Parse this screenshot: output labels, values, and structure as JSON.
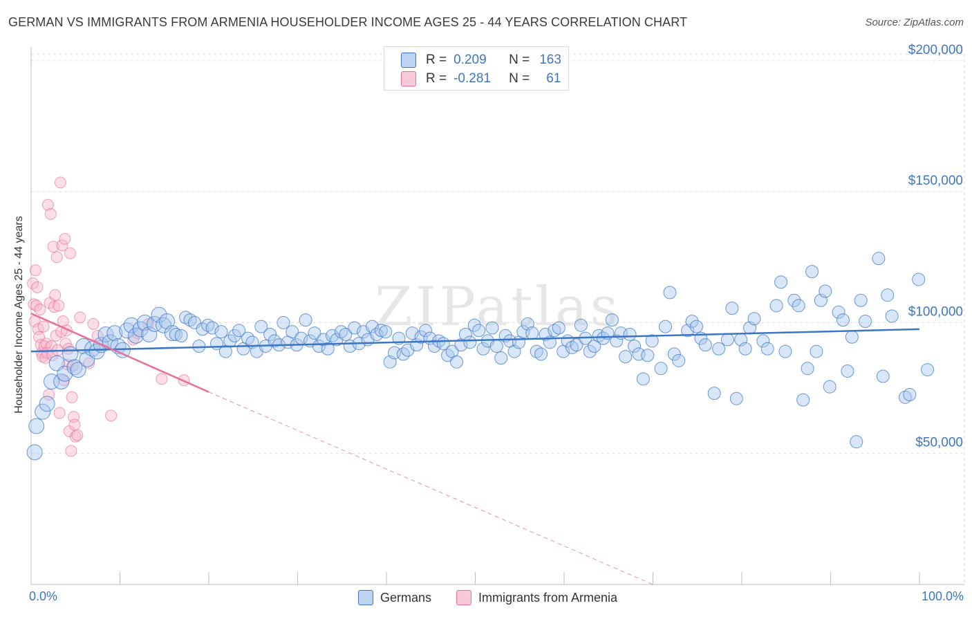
{
  "title": "GERMAN VS IMMIGRANTS FROM ARMENIA HOUSEHOLDER INCOME AGES 25 - 44 YEARS CORRELATION CHART",
  "source": "Source: ZipAtlas.com",
  "watermark": "ZIPatlas",
  "colors": {
    "blue": "#3b76c4",
    "blue_fill": "#a9c8ee",
    "pink": "#e76f9a",
    "pink_fill": "#f7b6cb",
    "grid": "#d9d9d9"
  },
  "legend": {
    "row1": {
      "r_label": "R =",
      "r_value": "0.209",
      "n_label": "N =",
      "n_value": "163"
    },
    "row2": {
      "r_label": "R =",
      "r_value": "-0.281",
      "n_label": "N =",
      "n_value": "61"
    }
  },
  "chart_data": {
    "type": "scatter",
    "title": "GERMAN VS IMMIGRANTS FROM ARMENIA HOUSEHOLDER INCOME AGES 25 - 44 YEARS CORRELATION CHART",
    "xlabel": "",
    "ylabel": "Householder Income Ages 25 - 44 years",
    "xlim": [
      0,
      100
    ],
    "ylim": [
      0,
      210000
    ],
    "x_tick_labels": [
      "0.0%",
      "100.0%"
    ],
    "y_ticks": [
      50000,
      100000,
      150000,
      200000
    ],
    "y_tick_labels": [
      "$50,000",
      "$100,000",
      "$150,000",
      "$200,000"
    ],
    "grid": true,
    "series": [
      {
        "name": "Germans",
        "color": "#3b76c4",
        "trend": {
          "x": [
            0,
            100
          ],
          "y": [
            89000,
            97500
          ],
          "dashed_beyond": null
        },
        "points": [
          [
            0.4,
            50500
          ],
          [
            0.6,
            60500
          ],
          [
            1.3,
            66000
          ],
          [
            1.8,
            69000
          ],
          [
            2.3,
            77500
          ],
          [
            2.9,
            84500
          ],
          [
            3.4,
            77500
          ],
          [
            3.8,
            80500
          ],
          [
            4.4,
            88000
          ],
          [
            4.9,
            83000
          ],
          [
            5.3,
            82000
          ],
          [
            5.9,
            91000
          ],
          [
            6.3,
            86000
          ],
          [
            6.9,
            90000
          ],
          [
            7.4,
            89000
          ],
          [
            7.9,
            91500
          ],
          [
            8.4,
            95500
          ],
          [
            8.9,
            92500
          ],
          [
            9.4,
            96000
          ],
          [
            9.8,
            91000
          ],
          [
            10.3,
            89500
          ],
          [
            10.8,
            97000
          ],
          [
            11.3,
            99000
          ],
          [
            11.8,
            95000
          ],
          [
            12.3,
            97500
          ],
          [
            12.8,
            100000
          ],
          [
            13.3,
            95500
          ],
          [
            13.9,
            99500
          ],
          [
            14.4,
            103000
          ],
          [
            14.9,
            99000
          ],
          [
            15.3,
            100500
          ],
          [
            15.9,
            96000
          ],
          [
            16.3,
            95500
          ],
          [
            16.9,
            95000
          ],
          [
            17.4,
            102000
          ],
          [
            17.9,
            101000
          ],
          [
            18.4,
            100000
          ],
          [
            18.9,
            91000
          ],
          [
            19.3,
            97500
          ],
          [
            19.9,
            99000
          ],
          [
            20.4,
            98000
          ],
          [
            20.9,
            92000
          ],
          [
            21.4,
            96500
          ],
          [
            21.9,
            89000
          ],
          [
            22.4,
            93000
          ],
          [
            22.9,
            95000
          ],
          [
            23.4,
            97000
          ],
          [
            23.9,
            90000
          ],
          [
            24.4,
            94000
          ],
          [
            24.9,
            92500
          ],
          [
            25.4,
            89000
          ],
          [
            25.9,
            98500
          ],
          [
            26.4,
            91000
          ],
          [
            26.9,
            95500
          ],
          [
            27.4,
            93000
          ],
          [
            27.9,
            91500
          ],
          [
            28.4,
            100000
          ],
          [
            28.9,
            92500
          ],
          [
            29.4,
            96500
          ],
          [
            29.9,
            91500
          ],
          [
            30.4,
            94000
          ],
          [
            30.9,
            101000
          ],
          [
            31.4,
            93000
          ],
          [
            31.9,
            96000
          ],
          [
            32.4,
            91000
          ],
          [
            32.9,
            93500
          ],
          [
            33.4,
            90000
          ],
          [
            33.9,
            95000
          ],
          [
            34.4,
            93500
          ],
          [
            34.9,
            96500
          ],
          [
            35.4,
            95500
          ],
          [
            35.9,
            91000
          ],
          [
            36.4,
            98000
          ],
          [
            36.9,
            92000
          ],
          [
            37.4,
            96500
          ],
          [
            37.9,
            93500
          ],
          [
            38.4,
            98500
          ],
          [
            38.9,
            95500
          ],
          [
            39.4,
            97000
          ],
          [
            39.9,
            96500
          ],
          [
            40.4,
            85000
          ],
          [
            40.9,
            88500
          ],
          [
            41.4,
            94000
          ],
          [
            41.9,
            88000
          ],
          [
            42.4,
            89500
          ],
          [
            42.9,
            96000
          ],
          [
            43.4,
            91500
          ],
          [
            43.9,
            94500
          ],
          [
            44.4,
            97000
          ],
          [
            44.9,
            94000
          ],
          [
            45.4,
            91000
          ],
          [
            45.9,
            93000
          ],
          [
            46.4,
            92000
          ],
          [
            46.9,
            87500
          ],
          [
            47.4,
            89000
          ],
          [
            47.9,
            85000
          ],
          [
            48.4,
            91500
          ],
          [
            48.9,
            95500
          ],
          [
            49.4,
            92500
          ],
          [
            49.9,
            99000
          ],
          [
            50.4,
            97000
          ],
          [
            50.9,
            90000
          ],
          [
            51.4,
            93000
          ],
          [
            51.9,
            98000
          ],
          [
            52.4,
            91000
          ],
          [
            52.9,
            86500
          ],
          [
            53.4,
            95000
          ],
          [
            53.9,
            93000
          ],
          [
            54.4,
            89000
          ],
          [
            54.9,
            92500
          ],
          [
            55.4,
            96500
          ],
          [
            55.9,
            99500
          ],
          [
            56.4,
            96000
          ],
          [
            56.9,
            89000
          ],
          [
            57.4,
            88000
          ],
          [
            57.9,
            95500
          ],
          [
            58.4,
            92500
          ],
          [
            58.9,
            97000
          ],
          [
            59.4,
            98000
          ],
          [
            59.9,
            89000
          ],
          [
            60.4,
            93000
          ],
          [
            60.9,
            90500
          ],
          [
            61.4,
            91500
          ],
          [
            61.9,
            99000
          ],
          [
            62.4,
            94000
          ],
          [
            62.9,
            89000
          ],
          [
            63.4,
            91000
          ],
          [
            63.9,
            95000
          ],
          [
            64.4,
            94000
          ],
          [
            64.9,
            96000
          ],
          [
            65.4,
            101000
          ],
          [
            65.9,
            93000
          ],
          [
            66.4,
            96000
          ],
          [
            66.9,
            87000
          ],
          [
            67.4,
            95500
          ],
          [
            67.9,
            91000
          ],
          [
            68.4,
            88000
          ],
          [
            68.9,
            78500
          ],
          [
            69.4,
            87500
          ],
          [
            69.9,
            93000
          ],
          [
            70.9,
            82500
          ],
          [
            71.4,
            98500
          ],
          [
            71.9,
            111500
          ],
          [
            72.4,
            88000
          ],
          [
            72.9,
            85500
          ],
          [
            73.9,
            97000
          ],
          [
            74.4,
            100500
          ],
          [
            74.9,
            98500
          ],
          [
            75.4,
            94000
          ],
          [
            75.9,
            91500
          ],
          [
            76.9,
            73000
          ],
          [
            77.4,
            90000
          ],
          [
            78.4,
            93500
          ],
          [
            78.9,
            105500
          ],
          [
            79.4,
            71000
          ],
          [
            79.9,
            93500
          ],
          [
            80.4,
            90000
          ],
          [
            80.9,
            98000
          ],
          [
            81.4,
            101500
          ],
          [
            82.4,
            93000
          ],
          [
            82.9,
            90000
          ],
          [
            83.9,
            106500
          ],
          [
            84.4,
            115500
          ],
          [
            84.9,
            89000
          ],
          [
            85.9,
            108500
          ],
          [
            86.4,
            106500
          ],
          [
            86.9,
            70500
          ],
          [
            87.4,
            82500
          ],
          [
            87.9,
            119500
          ],
          [
            88.4,
            89000
          ],
          [
            88.9,
            108500
          ],
          [
            89.4,
            112000
          ],
          [
            89.9,
            75500
          ],
          [
            90.9,
            104000
          ],
          [
            91.4,
            101000
          ],
          [
            91.9,
            81500
          ],
          [
            92.4,
            94500
          ],
          [
            92.9,
            54500
          ],
          [
            93.4,
            108500
          ],
          [
            93.9,
            100500
          ],
          [
            95.4,
            124500
          ],
          [
            95.9,
            79500
          ],
          [
            96.4,
            110500
          ],
          [
            96.9,
            102500
          ],
          [
            98.4,
            71500
          ],
          [
            98.9,
            72500
          ],
          [
            99.9,
            116500
          ],
          [
            100.9,
            82000
          ]
        ]
      },
      {
        "name": "Immigrants from Armenia",
        "color": "#e76f9a",
        "trend": {
          "x": [
            0,
            20
          ],
          "y": [
            103500,
            73500
          ],
          "dashed_to": [
            70,
            0
          ]
        },
        "points": [
          [
            0.2,
            115000
          ],
          [
            0.3,
            107000
          ],
          [
            0.4,
            100500
          ],
          [
            0.5,
            120000
          ],
          [
            0.6,
            106500
          ],
          [
            0.7,
            113500
          ],
          [
            0.8,
            97500
          ],
          [
            0.9,
            94500
          ],
          [
            1.0,
            105000
          ],
          [
            1.1,
            91500
          ],
          [
            1.2,
            88500
          ],
          [
            1.3,
            87000
          ],
          [
            1.4,
            98500
          ],
          [
            1.5,
            91000
          ],
          [
            1.6,
            86500
          ],
          [
            1.7,
            92000
          ],
          [
            1.8,
            88500
          ],
          [
            1.9,
            145000
          ],
          [
            2.0,
            72500
          ],
          [
            2.1,
            107500
          ],
          [
            2.2,
            141500
          ],
          [
            2.3,
            91000
          ],
          [
            2.4,
            87500
          ],
          [
            2.5,
            129000
          ],
          [
            2.6,
            106000
          ],
          [
            2.7,
            110500
          ],
          [
            2.8,
            95000
          ],
          [
            2.9,
            125000
          ],
          [
            3.0,
            89500
          ],
          [
            3.1,
            106500
          ],
          [
            3.2,
            65500
          ],
          [
            3.3,
            153500
          ],
          [
            3.4,
            96500
          ],
          [
            3.5,
            129500
          ],
          [
            3.6,
            100500
          ],
          [
            3.7,
            78000
          ],
          [
            3.8,
            132000
          ],
          [
            3.9,
            92000
          ],
          [
            4.0,
            97000
          ],
          [
            4.1,
            84000
          ],
          [
            4.2,
            90000
          ],
          [
            4.3,
            58500
          ],
          [
            4.4,
            126500
          ],
          [
            4.5,
            51000
          ],
          [
            4.6,
            71500
          ],
          [
            4.7,
            83500
          ],
          [
            4.8,
            64000
          ],
          [
            4.9,
            61000
          ],
          [
            5.0,
            56500
          ],
          [
            5.2,
            57000
          ],
          [
            5.5,
            102000
          ],
          [
            6.5,
            84500
          ],
          [
            7.0,
            99500
          ],
          [
            7.5,
            95000
          ],
          [
            8.0,
            91500
          ],
          [
            9.0,
            64500
          ],
          [
            11.5,
            93500
          ],
          [
            12.0,
            96000
          ],
          [
            13.2,
            99500
          ],
          [
            14.7,
            78500
          ],
          [
            17.2,
            78000
          ]
        ]
      }
    ]
  },
  "bottom_legend": {
    "series1": "Germans",
    "series2": "Immigrants from Armenia"
  },
  "x_axis": {
    "left_label": "0.0%",
    "right_label": "100.0%"
  }
}
